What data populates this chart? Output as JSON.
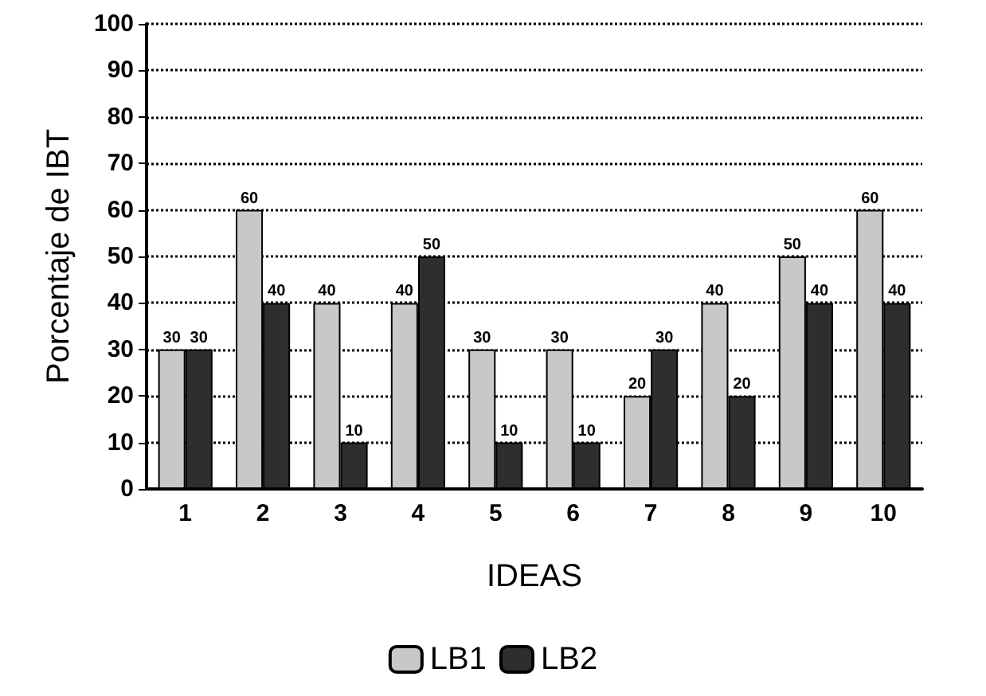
{
  "chart_data": {
    "type": "bar",
    "xlabel": "IDEAS",
    "ylabel": "Porcentaje de IBT",
    "categories": [
      "1",
      "2",
      "3",
      "4",
      "5",
      "6",
      "7",
      "8",
      "9",
      "10"
    ],
    "series": [
      {
        "name": "LB1",
        "color": "#c8c8c8",
        "values": [
          30,
          60,
          40,
          40,
          30,
          30,
          20,
          40,
          50,
          60
        ]
      },
      {
        "name": "LB2",
        "color": "#2e2e2e",
        "values": [
          30,
          40,
          10,
          50,
          10,
          10,
          30,
          20,
          40,
          40
        ]
      }
    ],
    "ylim": [
      0,
      100
    ],
    "yticks": [
      0,
      10,
      20,
      30,
      40,
      50,
      60,
      70,
      80,
      90,
      100
    ],
    "grid": "y",
    "legend": "bottom",
    "data_labels": true,
    "line_style": "dotted"
  }
}
